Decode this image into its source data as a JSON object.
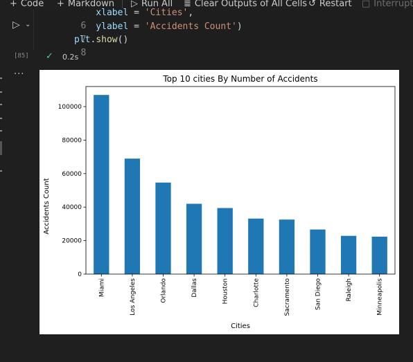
{
  "toolbar": {
    "code_label": "Code",
    "markdown_label": "Markdown",
    "run_all_label": "Run All",
    "clear_outputs_label": "Clear Outputs of All Cells",
    "restart_label": "Restart",
    "interrupt_label": "Interrupt"
  },
  "cell": {
    "lines": [
      {
        "num": "6",
        "text": "    xlabel = 'Cities',"
      },
      {
        "num": "7",
        "text": "    ylabel = 'Accidents Count')"
      },
      {
        "num": "8",
        "text": "plt.show()"
      }
    ],
    "execution_count": "[85]",
    "duration": "0.2s",
    "status": "success"
  },
  "colors": {
    "bar": "#1f77b4",
    "background": "#1f1f1f",
    "success": "#4ec9b0"
  },
  "chart_data": {
    "type": "bar",
    "title": "Top 10 cities By Number of Accidents",
    "xlabel": "Cities",
    "ylabel": "Accidents Count",
    "categories": [
      "Miami",
      "Los Angeles",
      "Orlando",
      "Dallas",
      "Houston",
      "Charlotte",
      "Sacramento",
      "San Diego",
      "Raleigh",
      "Minneapolis"
    ],
    "values": [
      106966,
      68956,
      54654,
      41979,
      39448,
      33152,
      32559,
      26627,
      22840,
      22356
    ],
    "yticks": [
      0,
      20000,
      40000,
      60000,
      80000,
      100000
    ],
    "ylim": [
      0,
      112000
    ],
    "grid": false,
    "legend": "none"
  }
}
